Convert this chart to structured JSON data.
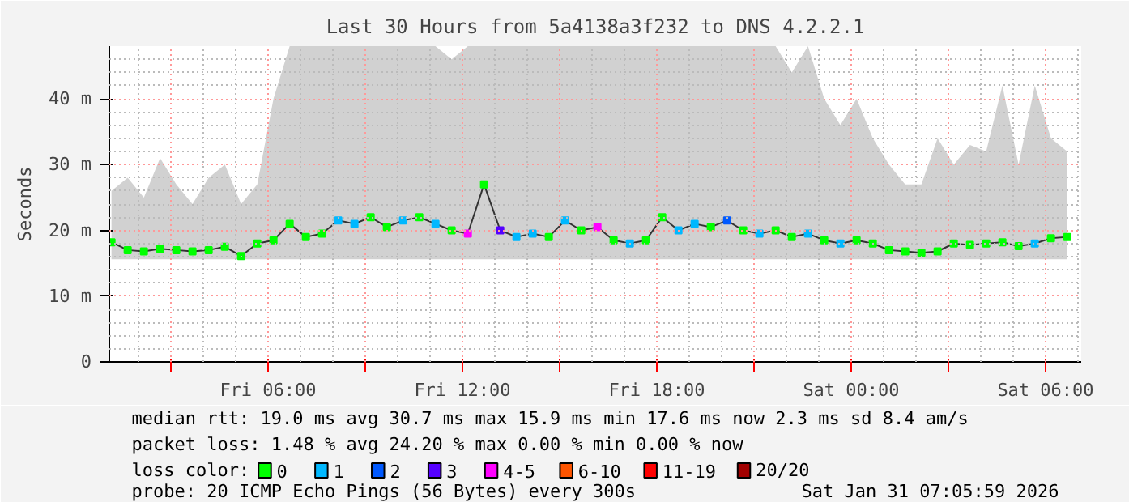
{
  "chart_data": {
    "type": "line",
    "title": "Last 30 Hours from 5a4138a3f232 to DNS 4.2.2.1",
    "ylabel": "Seconds",
    "x": [
      "2026-01-30T01:10",
      "2026-01-30T01:40",
      "2026-01-30T02:10",
      "2026-01-30T02:40",
      "2026-01-30T03:10",
      "2026-01-30T03:40",
      "2026-01-30T04:10",
      "2026-01-30T04:40",
      "2026-01-30T05:10",
      "2026-01-30T05:40",
      "2026-01-30T06:10",
      "2026-01-30T06:40",
      "2026-01-30T07:10",
      "2026-01-30T07:40",
      "2026-01-30T08:10",
      "2026-01-30T08:40",
      "2026-01-30T09:10",
      "2026-01-30T09:40",
      "2026-01-30T10:10",
      "2026-01-30T10:40",
      "2026-01-30T11:10",
      "2026-01-30T11:40",
      "2026-01-30T12:10",
      "2026-01-30T12:40",
      "2026-01-30T13:10",
      "2026-01-30T13:40",
      "2026-01-30T14:10",
      "2026-01-30T14:40",
      "2026-01-30T15:10",
      "2026-01-30T15:40",
      "2026-01-30T16:10",
      "2026-01-30T16:40",
      "2026-01-30T17:10",
      "2026-01-30T17:40",
      "2026-01-30T18:10",
      "2026-01-30T18:40",
      "2026-01-30T19:10",
      "2026-01-30T19:40",
      "2026-01-30T20:10",
      "2026-01-30T20:40",
      "2026-01-30T21:10",
      "2026-01-30T21:40",
      "2026-01-30T22:10",
      "2026-01-30T22:40",
      "2026-01-30T23:10",
      "2026-01-30T23:40",
      "2026-01-31T00:10",
      "2026-01-31T00:40",
      "2026-01-31T01:10",
      "2026-01-31T01:40",
      "2026-01-31T02:10",
      "2026-01-31T02:40",
      "2026-01-31T03:10",
      "2026-01-31T03:40",
      "2026-01-31T04:10",
      "2026-01-31T04:40",
      "2026-01-31T05:10",
      "2026-01-31T05:40",
      "2026-01-31T06:10",
      "2026-01-31T06:40"
    ],
    "series": [
      {
        "color": "#333333",
        "values": [
          18.2,
          17.0,
          16.8,
          17.2,
          17.0,
          16.8,
          17.0,
          17.5,
          16.1,
          18.0,
          18.5,
          21.0,
          19.0,
          19.5,
          21.5,
          21.0,
          22.0,
          20.5,
          21.5,
          22.0,
          21.0,
          20.0,
          19.5,
          27.0,
          20.0,
          19.0,
          19.5,
          19.0,
          21.5,
          20.0,
          20.5,
          18.5,
          18.0,
          18.5,
          22.0,
          20.0,
          21.0,
          20.5,
          21.5,
          20.0,
          19.5,
          20.0,
          19.0,
          19.5,
          18.5,
          18.0,
          18.5,
          18.0,
          17.0,
          16.8,
          16.6,
          16.8,
          18.0,
          17.8,
          18.0,
          18.2,
          17.6,
          18.0,
          18.8,
          19.0
        ],
        "lower": [
          15.6,
          15.6,
          15.6,
          15.6,
          15.6,
          15.6,
          15.6,
          15.6,
          15.6,
          15.6,
          15.6,
          15.6,
          15.6,
          15.6,
          15.6,
          15.6,
          15.6,
          15.6,
          15.6,
          15.6,
          15.6,
          15.6,
          15.6,
          15.6,
          15.6,
          15.6,
          15.6,
          15.6,
          15.6,
          15.6,
          15.6,
          15.6,
          15.6,
          15.6,
          15.6,
          15.6,
          15.6,
          15.6,
          15.6,
          15.6,
          15.6,
          15.6,
          15.6,
          15.6,
          15.6,
          15.6,
          15.6,
          15.6,
          15.6,
          15.6,
          15.6,
          15.6,
          15.6,
          15.6,
          15.6,
          15.6,
          15.6,
          15.6,
          15.6,
          15.6
        ],
        "upper": [
          26,
          28,
          25,
          31,
          27,
          24,
          28,
          30,
          24,
          27,
          40,
          48,
          48,
          48,
          48,
          48,
          48,
          48,
          48,
          48,
          48,
          46,
          48,
          48,
          48,
          48,
          48,
          48,
          48,
          48,
          48,
          48,
          48,
          48,
          48,
          48,
          48,
          48,
          48,
          48,
          48,
          48,
          44,
          48,
          40,
          36,
          40,
          34,
          30,
          27,
          27,
          34,
          30,
          33,
          32,
          42,
          30,
          42,
          34,
          32
        ]
      },
      {
        "type": "scatter",
        "name": "0",
        "color": "#00ff00",
        "marker": "square",
        "values": [
          18.2,
          17.0,
          16.8,
          17.2,
          17.0,
          16.8,
          17.0,
          17.5,
          16.1,
          18.0,
          18.5,
          21.0,
          19.0,
          19.5,
          null,
          null,
          22.0,
          20.5,
          null,
          22.0,
          null,
          20.0,
          null,
          27.0,
          null,
          null,
          null,
          19.0,
          null,
          20.0,
          null,
          18.5,
          null,
          18.5,
          22.0,
          null,
          null,
          20.5,
          null,
          20.0,
          null,
          20.0,
          19.0,
          null,
          18.5,
          null,
          18.5,
          18.0,
          17.0,
          16.8,
          16.6,
          16.8,
          18.0,
          17.8,
          18.0,
          18.2,
          17.6,
          null,
          18.8,
          19.0
        ]
      },
      {
        "type": "scatter",
        "name": "1",
        "color": "#00b8ff",
        "marker": "square",
        "values": [
          null,
          null,
          null,
          null,
          null,
          null,
          null,
          null,
          null,
          null,
          null,
          null,
          null,
          null,
          21.5,
          21.0,
          null,
          null,
          21.5,
          null,
          21.0,
          null,
          null,
          null,
          null,
          19.0,
          19.5,
          null,
          21.5,
          null,
          null,
          null,
          18.0,
          null,
          null,
          20.0,
          21.0,
          null,
          null,
          null,
          19.5,
          null,
          null,
          19.5,
          null,
          18.0,
          null,
          null,
          null,
          null,
          null,
          null,
          null,
          null,
          null,
          null,
          null,
          18.0,
          null,
          null
        ]
      },
      {
        "type": "scatter",
        "name": "2",
        "color": "#0059ff",
        "marker": "square",
        "values": [
          null,
          null,
          null,
          null,
          null,
          null,
          null,
          null,
          null,
          null,
          null,
          null,
          null,
          null,
          null,
          null,
          null,
          null,
          null,
          null,
          null,
          null,
          null,
          null,
          null,
          null,
          null,
          null,
          null,
          null,
          null,
          null,
          null,
          null,
          null,
          null,
          null,
          null,
          21.5,
          null,
          null,
          null,
          null,
          null,
          null,
          null,
          null,
          null,
          null,
          null,
          null,
          null,
          null,
          null,
          null,
          null,
          null,
          null,
          null,
          null
        ]
      },
      {
        "type": "scatter",
        "name": "3",
        "color": "#5500ff",
        "marker": "square",
        "values": [
          null,
          null,
          null,
          null,
          null,
          null,
          null,
          null,
          null,
          null,
          null,
          null,
          null,
          null,
          null,
          null,
          null,
          null,
          null,
          null,
          null,
          null,
          null,
          null,
          20.0,
          null,
          null,
          null,
          null,
          null,
          null,
          null,
          null,
          null,
          null,
          null,
          null,
          null,
          null,
          null,
          null,
          null,
          null,
          null,
          null,
          null,
          null,
          null,
          null,
          null,
          null,
          null,
          null,
          null,
          null,
          null,
          null,
          null,
          null,
          null
        ]
      },
      {
        "type": "scatter",
        "name": "4-5",
        "color": "#ff00ff",
        "marker": "square",
        "values": [
          null,
          null,
          null,
          null,
          null,
          null,
          null,
          null,
          null,
          null,
          null,
          null,
          null,
          null,
          null,
          null,
          null,
          null,
          null,
          null,
          null,
          null,
          19.5,
          null,
          null,
          null,
          null,
          null,
          null,
          null,
          20.5,
          null,
          null,
          null,
          null,
          null,
          null,
          null,
          null,
          null,
          null,
          null,
          null,
          null,
          null,
          null,
          null,
          null,
          null,
          null,
          null,
          null,
          null,
          null,
          null,
          null,
          null,
          null,
          null,
          null
        ]
      },
      {
        "type": "scatter",
        "name": "6-10",
        "color": "#ff5500",
        "values": [
          null,
          null,
          null,
          null,
          null,
          null,
          null,
          null,
          null,
          null,
          null,
          null,
          null,
          null,
          null,
          null,
          null,
          null,
          null,
          null,
          null,
          null,
          null,
          null,
          null,
          null,
          null,
          null,
          null,
          null,
          null,
          null,
          null,
          null,
          null,
          null,
          null,
          null,
          null,
          null,
          null,
          null,
          null,
          null,
          null,
          null,
          null,
          null,
          null,
          null,
          null,
          null,
          null,
          null,
          null,
          null,
          null,
          null,
          null,
          null
        ]
      },
      {
        "type": "scatter",
        "name": "11-19",
        "color": "#ff0000",
        "values": [
          null,
          null,
          null,
          null,
          null,
          null,
          null,
          null,
          null,
          null,
          null,
          null,
          null,
          null,
          null,
          null,
          null,
          null,
          null,
          null,
          null,
          null,
          null,
          null,
          null,
          null,
          null,
          null,
          null,
          null,
          null,
          null,
          null,
          null,
          null,
          null,
          null,
          null,
          null,
          null,
          null,
          null,
          null,
          null,
          null,
          null,
          null,
          null,
          null,
          null,
          null,
          null,
          null,
          null,
          null,
          null,
          null,
          null,
          null,
          null
        ]
      },
      {
        "type": "scatter",
        "name": "20/20",
        "color": "#a10000",
        "values": [
          null,
          null,
          null,
          null,
          null,
          null,
          null,
          null,
          null,
          null,
          null,
          null,
          null,
          null,
          null,
          null,
          null,
          null,
          null,
          null,
          null,
          null,
          null,
          null,
          null,
          null,
          null,
          null,
          null,
          null,
          null,
          null,
          null,
          null,
          null,
          null,
          null,
          null,
          null,
          null,
          null,
          null,
          null,
          null,
          null,
          null,
          null,
          null,
          null,
          null,
          null,
          null,
          null,
          null,
          null,
          null,
          null,
          null,
          null,
          null
        ]
      }
    ],
    "legend_title": "loss color:",
    "legend": "bottom",
    "grid": true,
    "xlim": [
      "2026-01-30T01:06",
      "2026-01-31T07:06"
    ],
    "xticks": [
      {
        "value": "2026-01-30T03:00",
        "label": null
      },
      {
        "value": "2026-01-30T06:00",
        "label": "Fri 06:00"
      },
      {
        "value": "2026-01-30T09:00",
        "label": null
      },
      {
        "value": "2026-01-30T12:00",
        "label": "Fri 12:00"
      },
      {
        "value": "2026-01-30T15:00",
        "label": null
      },
      {
        "value": "2026-01-30T18:00",
        "label": "Fri 18:00"
      },
      {
        "value": "2026-01-30T21:00",
        "label": null
      },
      {
        "value": "2026-01-31T00:00",
        "label": "Sat 00:00"
      },
      {
        "value": "2026-01-31T03:00",
        "label": null
      },
      {
        "value": "2026-01-31T06:00",
        "label": "Sat 06:00"
      }
    ],
    "ylim": [
      0,
      48
    ],
    "yticks": [
      0,
      {
        "value": 10,
        "label": "10 m"
      },
      {
        "value": 20,
        "label": "20 m"
      },
      {
        "value": 30,
        "label": "30 m"
      },
      {
        "value": 40,
        "label": "40 m"
      }
    ],
    "annotations": [
      "median rtt:  19.0 ms avg  30.7 ms max  15.9 ms min  17.6 ms now  2.3 ms sd  8.4   am/s",
      "packet loss: 1.48 % avg  24.20 % max  0.00 % min  0.00 % now",
      "probe:       20 ICMP Echo Pings (56 Bytes) every 300s",
      "Sat Jan 31 07:05:59 2026"
    ]
  }
}
